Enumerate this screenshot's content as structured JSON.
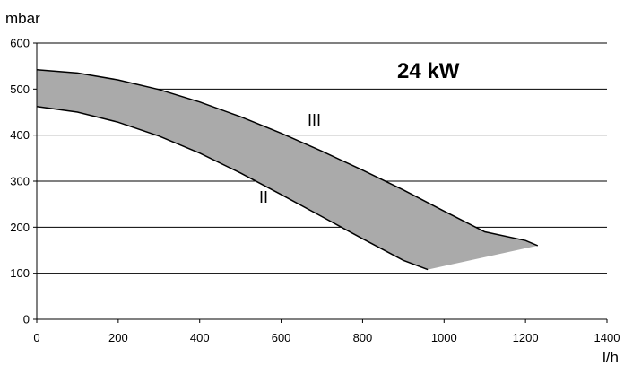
{
  "chart_data": {
    "type": "area",
    "title": "24 kW",
    "ylabel": "mbar",
    "xlabel": "l/h",
    "xlim": [
      0,
      1400
    ],
    "ylim": [
      0,
      600
    ],
    "xticks": [
      0,
      200,
      400,
      600,
      800,
      1000,
      1200,
      1400
    ],
    "yticks": [
      0,
      100,
      200,
      300,
      400,
      500,
      600
    ],
    "grid": "horizontal",
    "fill_color": "#aaaaaa",
    "series": [
      {
        "name": "III",
        "x": [
          0,
          100,
          200,
          300,
          400,
          500,
          600,
          700,
          800,
          900,
          1000,
          1100,
          1200,
          1230
        ],
        "values": [
          542,
          535,
          520,
          499,
          472,
          440,
          404,
          365,
          324,
          281,
          235,
          190,
          171,
          160
        ]
      },
      {
        "name": "II",
        "x": [
          0,
          100,
          200,
          300,
          400,
          500,
          600,
          700,
          800,
          900,
          960
        ],
        "values": [
          462,
          450,
          428,
          398,
          361,
          318,
          271,
          223,
          175,
          128,
          108
        ]
      }
    ]
  }
}
